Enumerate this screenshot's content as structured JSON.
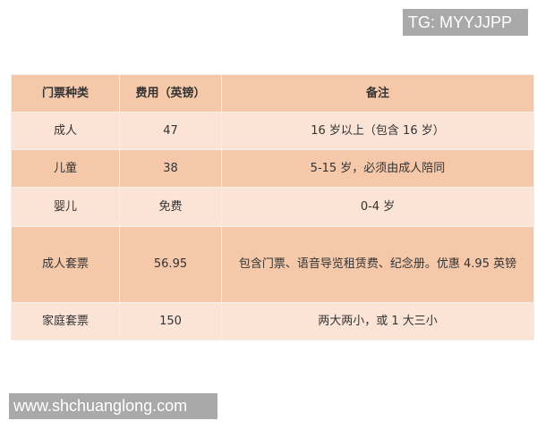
{
  "watermarks": {
    "top": "TG: MYYJJPP",
    "bottom": "www.shchuanglong.com"
  },
  "colors": {
    "header_row": "#f5c8aa",
    "dark_row": "#f5c8aa",
    "light_row": "#fbe4d6"
  },
  "table": {
    "headers": [
      "门票种类",
      "费用（英镑）",
      "备注"
    ],
    "rows": [
      [
        "成人",
        "47",
        "16 岁以上（包含 16 岁）"
      ],
      [
        "儿童",
        "38",
        "5-15 岁，必须由成人陪同"
      ],
      [
        "婴儿",
        "免费",
        "0-4 岁"
      ],
      [
        "成人套票",
        "56.95",
        "包含门票、语音导览租赁费、纪念册。优惠 4.95 英镑"
      ],
      [
        "家庭套票",
        "150",
        "两大两小，或 1 大三小"
      ]
    ]
  }
}
